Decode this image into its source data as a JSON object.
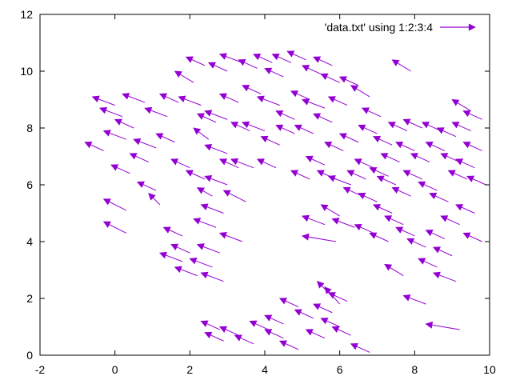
{
  "chart_data": {
    "type": "vector-field",
    "title": "",
    "xlabel": "",
    "ylabel": "",
    "xlim": [
      -2,
      10
    ],
    "ylim": [
      0,
      12
    ],
    "xticks": [
      "-2",
      "0",
      "2",
      "4",
      "6",
      "8",
      "10"
    ],
    "yticks": [
      "0",
      "2",
      "4",
      "6",
      "8",
      "10",
      "12"
    ],
    "grid": false,
    "legend": {
      "position": "top-right",
      "label": "'data.txt' using 1:2:3:4"
    },
    "series": [
      {
        "name": "'data.txt' using 1:2:3:4",
        "color": "#9400d3",
        "note": "approximate subsample of vectors read from the plot: [x, y, dx, dy]",
        "vectors": [
          [
            0.0,
            8.8,
            -0.6,
            0.3
          ],
          [
            0.2,
            8.4,
            -0.6,
            0.3
          ],
          [
            0.3,
            7.6,
            -0.6,
            0.3
          ],
          [
            -0.3,
            7.2,
            -0.5,
            0.3
          ],
          [
            0.5,
            8.0,
            -0.5,
            0.3
          ],
          [
            0.8,
            8.9,
            -0.6,
            0.3
          ],
          [
            1.1,
            7.3,
            -0.6,
            0.3
          ],
          [
            1.4,
            8.4,
            -0.6,
            0.3
          ],
          [
            1.7,
            8.9,
            -0.5,
            0.3
          ],
          [
            1.6,
            7.5,
            -0.5,
            0.3
          ],
          [
            0.9,
            6.8,
            -0.5,
            0.3
          ],
          [
            0.4,
            6.4,
            -0.5,
            0.3
          ],
          [
            2.0,
            6.6,
            -0.5,
            0.3
          ],
          [
            2.4,
            6.2,
            -0.5,
            0.3
          ],
          [
            1.1,
            5.8,
            -0.5,
            0.3
          ],
          [
            1.2,
            5.3,
            -0.3,
            0.4
          ],
          [
            0.3,
            5.1,
            -0.6,
            0.4
          ],
          [
            0.3,
            4.3,
            -0.6,
            0.4
          ],
          [
            1.8,
            4.2,
            -0.5,
            0.3
          ],
          [
            2.7,
            4.5,
            -0.6,
            0.3
          ],
          [
            2.9,
            5.0,
            -0.6,
            0.3
          ],
          [
            3.4,
            4.0,
            -0.6,
            0.3
          ],
          [
            2.8,
            3.6,
            -0.6,
            0.3
          ],
          [
            2.6,
            3.1,
            -0.6,
            0.3
          ],
          [
            2.2,
            2.8,
            -0.6,
            0.3
          ],
          [
            1.8,
            3.3,
            -0.6,
            0.3
          ],
          [
            2.9,
            2.6,
            -0.6,
            0.3
          ],
          [
            2.0,
            3.6,
            -0.5,
            0.3
          ],
          [
            3.0,
            6.0,
            -0.6,
            0.3
          ],
          [
            3.5,
            5.4,
            -0.6,
            0.4
          ],
          [
            2.6,
            5.6,
            -0.4,
            0.3
          ],
          [
            3.7,
            6.6,
            -0.6,
            0.3
          ],
          [
            2.5,
            7.6,
            -0.4,
            0.4
          ],
          [
            3.0,
            8.3,
            -0.6,
            0.3
          ],
          [
            2.3,
            8.8,
            -0.6,
            0.3
          ],
          [
            2.1,
            9.6,
            -0.5,
            0.4
          ],
          [
            2.4,
            10.2,
            -0.5,
            0.3
          ],
          [
            3.0,
            10.0,
            -0.5,
            0.3
          ],
          [
            3.4,
            10.3,
            -0.6,
            0.3
          ],
          [
            3.8,
            10.1,
            -0.5,
            0.3
          ],
          [
            4.2,
            10.3,
            -0.5,
            0.3
          ],
          [
            4.5,
            9.8,
            -0.5,
            0.3
          ],
          [
            4.7,
            10.3,
            -0.5,
            0.3
          ],
          [
            5.1,
            10.4,
            -0.5,
            0.3
          ],
          [
            5.5,
            9.9,
            -0.5,
            0.3
          ],
          [
            5.8,
            10.2,
            -0.5,
            0.3
          ],
          [
            6.0,
            9.6,
            -0.5,
            0.3
          ],
          [
            3.9,
            9.2,
            -0.5,
            0.3
          ],
          [
            4.4,
            8.8,
            -0.6,
            0.3
          ],
          [
            4.8,
            8.3,
            -0.5,
            0.3
          ],
          [
            5.2,
            9.0,
            -0.5,
            0.3
          ],
          [
            5.6,
            8.7,
            -0.6,
            0.3
          ],
          [
            4.0,
            7.9,
            -0.6,
            0.3
          ],
          [
            4.4,
            7.4,
            -0.5,
            0.3
          ],
          [
            4.8,
            7.8,
            -0.5,
            0.3
          ],
          [
            5.3,
            7.8,
            -0.5,
            0.3
          ],
          [
            5.8,
            8.2,
            -0.5,
            0.3
          ],
          [
            6.2,
            8.8,
            -0.5,
            0.3
          ],
          [
            6.5,
            9.5,
            -0.5,
            0.3
          ],
          [
            6.8,
            9.1,
            -0.5,
            0.4
          ],
          [
            7.1,
            8.4,
            -0.5,
            0.3
          ],
          [
            7.0,
            7.8,
            -0.5,
            0.3
          ],
          [
            6.5,
            7.5,
            -0.5,
            0.3
          ],
          [
            6.1,
            7.2,
            -0.5,
            0.3
          ],
          [
            5.6,
            6.7,
            -0.5,
            0.3
          ],
          [
            5.2,
            6.2,
            -0.5,
            0.3
          ],
          [
            5.9,
            6.2,
            -0.5,
            0.3
          ],
          [
            6.3,
            6.0,
            -0.6,
            0.3
          ],
          [
            6.6,
            5.6,
            -0.5,
            0.3
          ],
          [
            7.0,
            5.4,
            -0.5,
            0.3
          ],
          [
            7.4,
            5.0,
            -0.5,
            0.3
          ],
          [
            5.6,
            4.6,
            -0.6,
            0.3
          ],
          [
            6.0,
            4.9,
            -0.5,
            0.4
          ],
          [
            6.4,
            4.5,
            -0.6,
            0.3
          ],
          [
            6.9,
            4.3,
            -0.5,
            0.3
          ],
          [
            7.3,
            4.0,
            -0.5,
            0.3
          ],
          [
            7.7,
            4.6,
            -0.5,
            0.3
          ],
          [
            8.0,
            4.2,
            -0.5,
            0.3
          ],
          [
            8.3,
            3.8,
            -0.5,
            0.3
          ],
          [
            5.9,
            4.0,
            -0.9,
            0.2
          ],
          [
            7.5,
            6.0,
            -0.5,
            0.3
          ],
          [
            7.9,
            5.6,
            -0.5,
            0.3
          ],
          [
            8.2,
            6.2,
            -0.5,
            0.3
          ],
          [
            8.6,
            5.8,
            -0.5,
            0.3
          ],
          [
            8.9,
            5.4,
            -0.5,
            0.3
          ],
          [
            7.6,
            6.8,
            -0.5,
            0.3
          ],
          [
            8.0,
            7.2,
            -0.5,
            0.3
          ],
          [
            8.4,
            6.8,
            -0.5,
            0.3
          ],
          [
            8.8,
            7.2,
            -0.5,
            0.3
          ],
          [
            9.2,
            6.8,
            -0.5,
            0.3
          ],
          [
            9.6,
            6.6,
            -0.5,
            0.3
          ],
          [
            9.8,
            7.2,
            -0.5,
            0.3
          ],
          [
            7.4,
            7.4,
            -0.5,
            0.3
          ],
          [
            7.8,
            7.9,
            -0.5,
            0.3
          ],
          [
            8.2,
            8.0,
            -0.5,
            0.3
          ],
          [
            8.7,
            7.9,
            -0.5,
            0.3
          ],
          [
            9.1,
            7.7,
            -0.5,
            0.3
          ],
          [
            9.5,
            7.9,
            -0.5,
            0.3
          ],
          [
            9.8,
            8.3,
            -0.5,
            0.3
          ],
          [
            9.9,
            6.0,
            -0.5,
            0.3
          ],
          [
            9.4,
            6.2,
            -0.5,
            0.3
          ],
          [
            9.6,
            5.0,
            -0.5,
            0.3
          ],
          [
            9.2,
            4.6,
            -0.5,
            0.3
          ],
          [
            8.8,
            4.1,
            -0.5,
            0.3
          ],
          [
            9.0,
            3.5,
            -0.5,
            0.3
          ],
          [
            8.6,
            3.1,
            -0.5,
            0.3
          ],
          [
            9.1,
            2.6,
            -0.6,
            0.3
          ],
          [
            7.7,
            2.8,
            -0.5,
            0.4
          ],
          [
            9.8,
            4.0,
            -0.5,
            0.3
          ],
          [
            9.5,
            8.6,
            -0.5,
            0.4
          ],
          [
            8.3,
            1.8,
            -0.6,
            0.3
          ],
          [
            9.2,
            0.9,
            -0.9,
            0.2
          ],
          [
            7.9,
            10.0,
            -0.5,
            0.4
          ],
          [
            4.9,
            1.7,
            -0.5,
            0.3
          ],
          [
            5.3,
            1.3,
            -0.5,
            0.3
          ],
          [
            5.8,
            1.5,
            -0.5,
            0.3
          ],
          [
            6.2,
            1.9,
            -0.5,
            0.3
          ],
          [
            6.0,
            1.0,
            -0.5,
            0.3
          ],
          [
            5.6,
            0.6,
            -0.5,
            0.3
          ],
          [
            6.3,
            0.7,
            -0.5,
            0.3
          ],
          [
            6.8,
            0.1,
            -0.5,
            0.3
          ],
          [
            4.5,
            0.6,
            -0.5,
            0.3
          ],
          [
            4.9,
            0.2,
            -0.5,
            0.3
          ],
          [
            4.1,
            0.9,
            -0.5,
            0.3
          ],
          [
            3.7,
            0.4,
            -0.5,
            0.3
          ],
          [
            3.3,
            0.7,
            -0.5,
            0.3
          ],
          [
            2.9,
            0.5,
            -0.5,
            0.3
          ],
          [
            2.8,
            0.9,
            -0.5,
            0.3
          ],
          [
            4.5,
            1.1,
            -0.5,
            0.3
          ],
          [
            6.0,
            1.8,
            -0.4,
            0.6
          ],
          [
            5.7,
            2.2,
            -0.3,
            0.4
          ],
          [
            3.0,
            7.1,
            -0.6,
            0.3
          ],
          [
            3.3,
            6.6,
            -0.5,
            0.3
          ],
          [
            4.3,
            6.6,
            -0.5,
            0.3
          ],
          [
            3.6,
            7.9,
            -0.5,
            0.3
          ],
          [
            3.3,
            8.9,
            -0.5,
            0.3
          ],
          [
            2.7,
            8.2,
            -0.5,
            0.3
          ],
          [
            6.9,
            6.6,
            -0.5,
            0.3
          ],
          [
            7.3,
            6.3,
            -0.5,
            0.3
          ],
          [
            6.7,
            6.2,
            -0.5,
            0.3
          ]
        ]
      }
    ]
  }
}
